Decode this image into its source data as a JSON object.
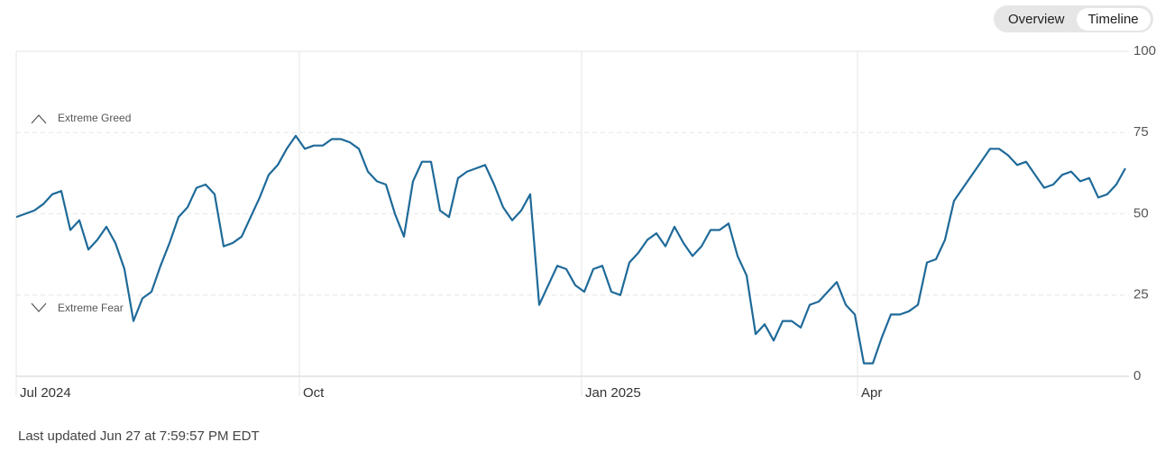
{
  "toggle": {
    "options": [
      "Overview",
      "Timeline"
    ]
  },
  "chart_data": {
    "type": "line",
    "color": "#1f6a99",
    "annotations": [
      "Extreme Greed",
      "Extreme Fear"
    ],
    "values": [
      49,
      50,
      51,
      53,
      56,
      57,
      45,
      48,
      39,
      42,
      46,
      41,
      33,
      17,
      24,
      26,
      34,
      41,
      49,
      52,
      58,
      59,
      56,
      40,
      41,
      43,
      49,
      55,
      62,
      65,
      70,
      74,
      70,
      71,
      71,
      73,
      73,
      72,
      70,
      63,
      60,
      59,
      50,
      43,
      60,
      66,
      66,
      51,
      49,
      61,
      63,
      64,
      65,
      59,
      52,
      48,
      51,
      56,
      22,
      28,
      34,
      33,
      28,
      26,
      33,
      34,
      26,
      25,
      35,
      38,
      42,
      44,
      40,
      46,
      41,
      37,
      40,
      45,
      45,
      47,
      37,
      31,
      13,
      16,
      11,
      17,
      17,
      15,
      22,
      23,
      26,
      29,
      22,
      19,
      4,
      4,
      12,
      19,
      19,
      20,
      22,
      35,
      36,
      42,
      54,
      58,
      62,
      66,
      70,
      70,
      68,
      65,
      66,
      62,
      58,
      59,
      62,
      63,
      60,
      61,
      55,
      56,
      59,
      64
    ],
    "xticks": [
      {
        "value": 0,
        "label": "Jul 2024"
      },
      {
        "value": 31.4,
        "label": "Oct"
      },
      {
        "value": 62.7,
        "label": "Jan 2025"
      },
      {
        "value": 93.3,
        "label": "Apr"
      }
    ],
    "ylim": [
      0,
      100
    ],
    "yticks": [
      0,
      25,
      50,
      75,
      100
    ],
    "grid": true
  },
  "footer": "Last updated Jun 27 at 7:59:57 PM EDT"
}
